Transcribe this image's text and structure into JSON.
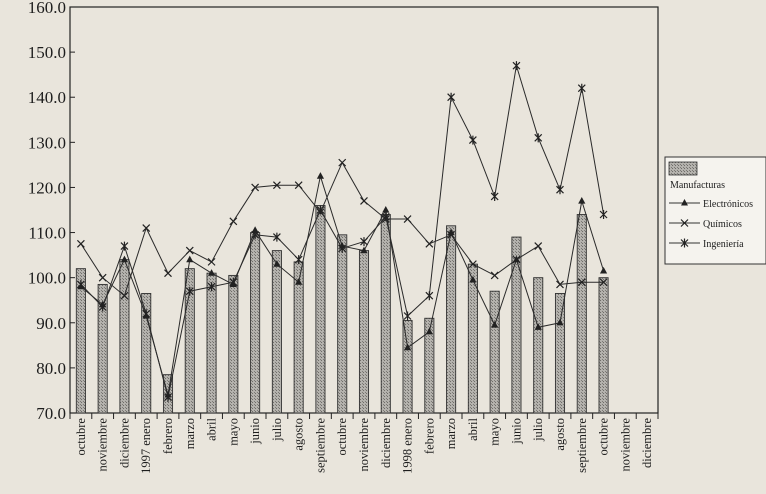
{
  "chart_data": {
    "type": "bar",
    "ylim": [
      70,
      160
    ],
    "y_ticks": [
      "160.0",
      "150.0",
      "140.0",
      "130.0",
      "120.0",
      "110.0",
      "100.0",
      "90.0",
      "80.0",
      "70.0"
    ],
    "grid": false,
    "legend_position": "right",
    "categories": [
      "octubre",
      "noviembre",
      "diciembre",
      "1997 enero",
      "febrero",
      "marzo",
      "abril",
      "mayo",
      "junio",
      "julio",
      "agosto",
      "septiembre",
      "octubre",
      "noviembre",
      "diciembre",
      "1998 enero",
      "febrero",
      "marzo",
      "abril",
      "mayo",
      "junio",
      "julio",
      "agosto",
      "septiembre",
      "octubre",
      "noviembre",
      "diciembre"
    ],
    "series": [
      {
        "name": "Manufacturas",
        "kind": "bar",
        "color": "#9a9a9a",
        "values": [
          102,
          98.5,
          104,
          96.5,
          78.5,
          102,
          101,
          100.5,
          110,
          106,
          103.5,
          116,
          109.5,
          106,
          114,
          90.5,
          91,
          111.5,
          103,
          97,
          109,
          100,
          96.5,
          114,
          100,
          null,
          null
        ]
      },
      {
        "name": "Electrónicos",
        "kind": "line",
        "marker": "triangle",
        "values": [
          98,
          94,
          104,
          91.5,
          74,
          104,
          101,
          98.5,
          110.5,
          103,
          99,
          122.5,
          107,
          106,
          115,
          84.5,
          88,
          110,
          99.5,
          89.5,
          104,
          89,
          90,
          117,
          101.5,
          null,
          null
        ]
      },
      {
        "name": "Químicos",
        "kind": "line",
        "marker": "x",
        "values": [
          107.5,
          100,
          96,
          111,
          101,
          106,
          103.5,
          112.5,
          120,
          120.5,
          120.5,
          114.5,
          125.5,
          117,
          113,
          113,
          107.5,
          109.5,
          103,
          100.5,
          104,
          107,
          98.5,
          99,
          99,
          null,
          null
        ]
      },
      {
        "name": "Ingeniería",
        "kind": "line",
        "marker": "star",
        "values": [
          98.5,
          93.5,
          107,
          92,
          73.5,
          97,
          98,
          99,
          109.5,
          109,
          104,
          115,
          106.5,
          108,
          113.5,
          91.5,
          96,
          140,
          130.5,
          118,
          147,
          131,
          119.5,
          142,
          114,
          null,
          null
        ]
      }
    ]
  },
  "legend": {
    "bar_label": "Manufacturas",
    "items": [
      "Electrónicos",
      "Químicos",
      "Ingeniería"
    ]
  }
}
